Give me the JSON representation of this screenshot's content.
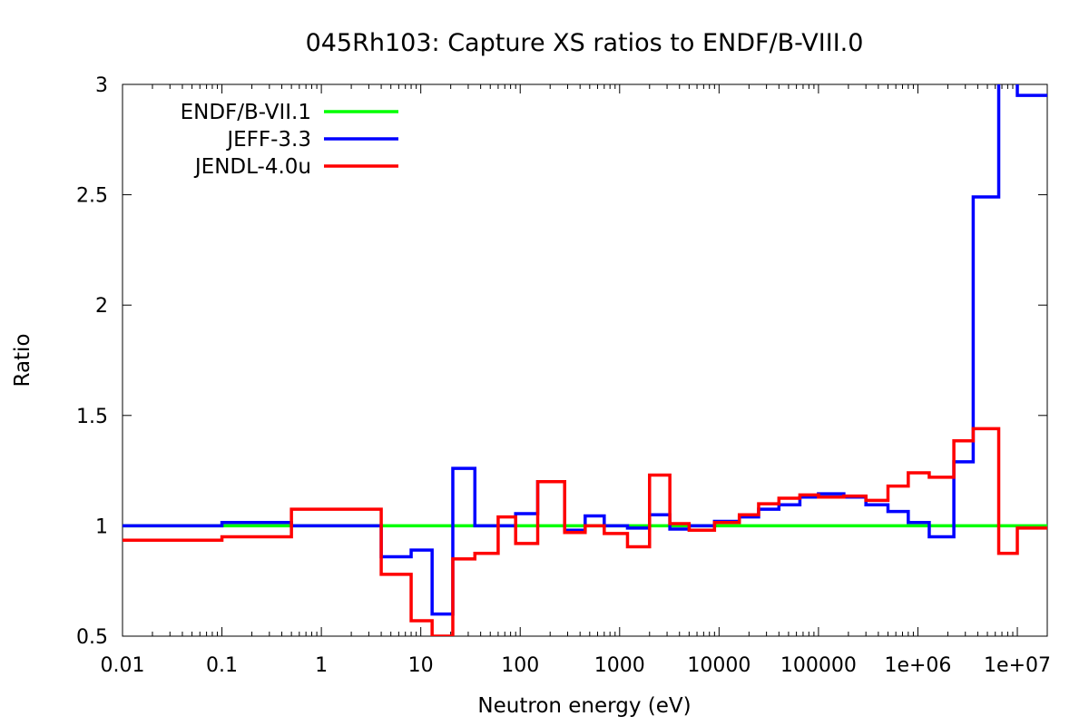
{
  "chart_data": {
    "type": "line",
    "title": "045Rh103: Capture XS ratios to ENDF/B-VIII.0",
    "xlabel": "Neutron energy (eV)",
    "ylabel": "Ratio",
    "xscale": "log",
    "xlim": [
      0.01,
      20000000
    ],
    "ylim": [
      0.5,
      3
    ],
    "xticks": [
      {
        "value": 0.01,
        "label": "0.01"
      },
      {
        "value": 0.1,
        "label": "0.1"
      },
      {
        "value": 1,
        "label": "1"
      },
      {
        "value": 10,
        "label": "10"
      },
      {
        "value": 100,
        "label": "100"
      },
      {
        "value": 1000,
        "label": "1000"
      },
      {
        "value": 10000,
        "label": "10000"
      },
      {
        "value": 100000,
        "label": "100000"
      },
      {
        "value": 1000000,
        "label": "1e+06"
      },
      {
        "value": 10000000,
        "label": "1e+07"
      }
    ],
    "yticks": [
      {
        "value": 0.5,
        "label": "0.5"
      },
      {
        "value": 1,
        "label": "1"
      },
      {
        "value": 1.5,
        "label": "1.5"
      },
      {
        "value": 2,
        "label": "2"
      },
      {
        "value": 2.5,
        "label": "2.5"
      },
      {
        "value": 3,
        "label": "3"
      }
    ],
    "legend_position": "top-left",
    "grid": false,
    "series": [
      {
        "name": "ENDF/B-VII.1",
        "color": "#00ff00",
        "step": true,
        "points": [
          [
            0.01,
            1.0
          ],
          [
            20000000,
            1.0
          ]
        ]
      },
      {
        "name": "JEFF-3.3",
        "color": "#0000ff",
        "step": true,
        "points": [
          [
            0.01,
            1.0
          ],
          [
            0.1,
            1.015
          ],
          [
            0.5,
            1.0
          ],
          [
            4,
            0.86
          ],
          [
            8,
            0.89
          ],
          [
            13,
            0.6
          ],
          [
            21,
            1.26
          ],
          [
            35,
            1.0
          ],
          [
            60,
            1.0
          ],
          [
            90,
            1.055
          ],
          [
            150,
            1.2
          ],
          [
            280,
            0.98
          ],
          [
            450,
            1.045
          ],
          [
            700,
            1.0
          ],
          [
            1200,
            0.99
          ],
          [
            2000,
            1.05
          ],
          [
            3200,
            0.985
          ],
          [
            5000,
            1.0
          ],
          [
            9000,
            1.02
          ],
          [
            16000,
            1.04
          ],
          [
            25000,
            1.075
          ],
          [
            40000,
            1.095
          ],
          [
            65000,
            1.13
          ],
          [
            100000,
            1.145
          ],
          [
            180000,
            1.13
          ],
          [
            300000,
            1.095
          ],
          [
            500000,
            1.065
          ],
          [
            800000,
            1.015
          ],
          [
            1300000,
            0.95
          ],
          [
            2300000,
            1.29
          ],
          [
            3600000,
            2.49
          ],
          [
            6500000,
            3.05
          ],
          [
            10000000,
            2.95
          ],
          [
            20000000,
            2.95
          ]
        ]
      },
      {
        "name": "JENDL-4.0u",
        "color": "#ff0000",
        "step": true,
        "points": [
          [
            0.01,
            0.935
          ],
          [
            0.1,
            0.95
          ],
          [
            0.5,
            1.075
          ],
          [
            4,
            0.78
          ],
          [
            8,
            0.57
          ],
          [
            13,
            0.5
          ],
          [
            21,
            0.85
          ],
          [
            35,
            0.875
          ],
          [
            60,
            1.04
          ],
          [
            90,
            0.92
          ],
          [
            150,
            1.2
          ],
          [
            280,
            0.97
          ],
          [
            450,
            1.0
          ],
          [
            700,
            0.965
          ],
          [
            1200,
            0.905
          ],
          [
            2000,
            1.23
          ],
          [
            3200,
            1.01
          ],
          [
            5000,
            0.98
          ],
          [
            9000,
            1.015
          ],
          [
            16000,
            1.05
          ],
          [
            25000,
            1.1
          ],
          [
            40000,
            1.125
          ],
          [
            65000,
            1.14
          ],
          [
            100000,
            1.13
          ],
          [
            180000,
            1.135
          ],
          [
            300000,
            1.115
          ],
          [
            500000,
            1.18
          ],
          [
            800000,
            1.24
          ],
          [
            1300000,
            1.22
          ],
          [
            2300000,
            1.385
          ],
          [
            3600000,
            1.44
          ],
          [
            6500000,
            0.875
          ],
          [
            10000000,
            0.99
          ],
          [
            20000000,
            0.99
          ]
        ]
      }
    ]
  }
}
